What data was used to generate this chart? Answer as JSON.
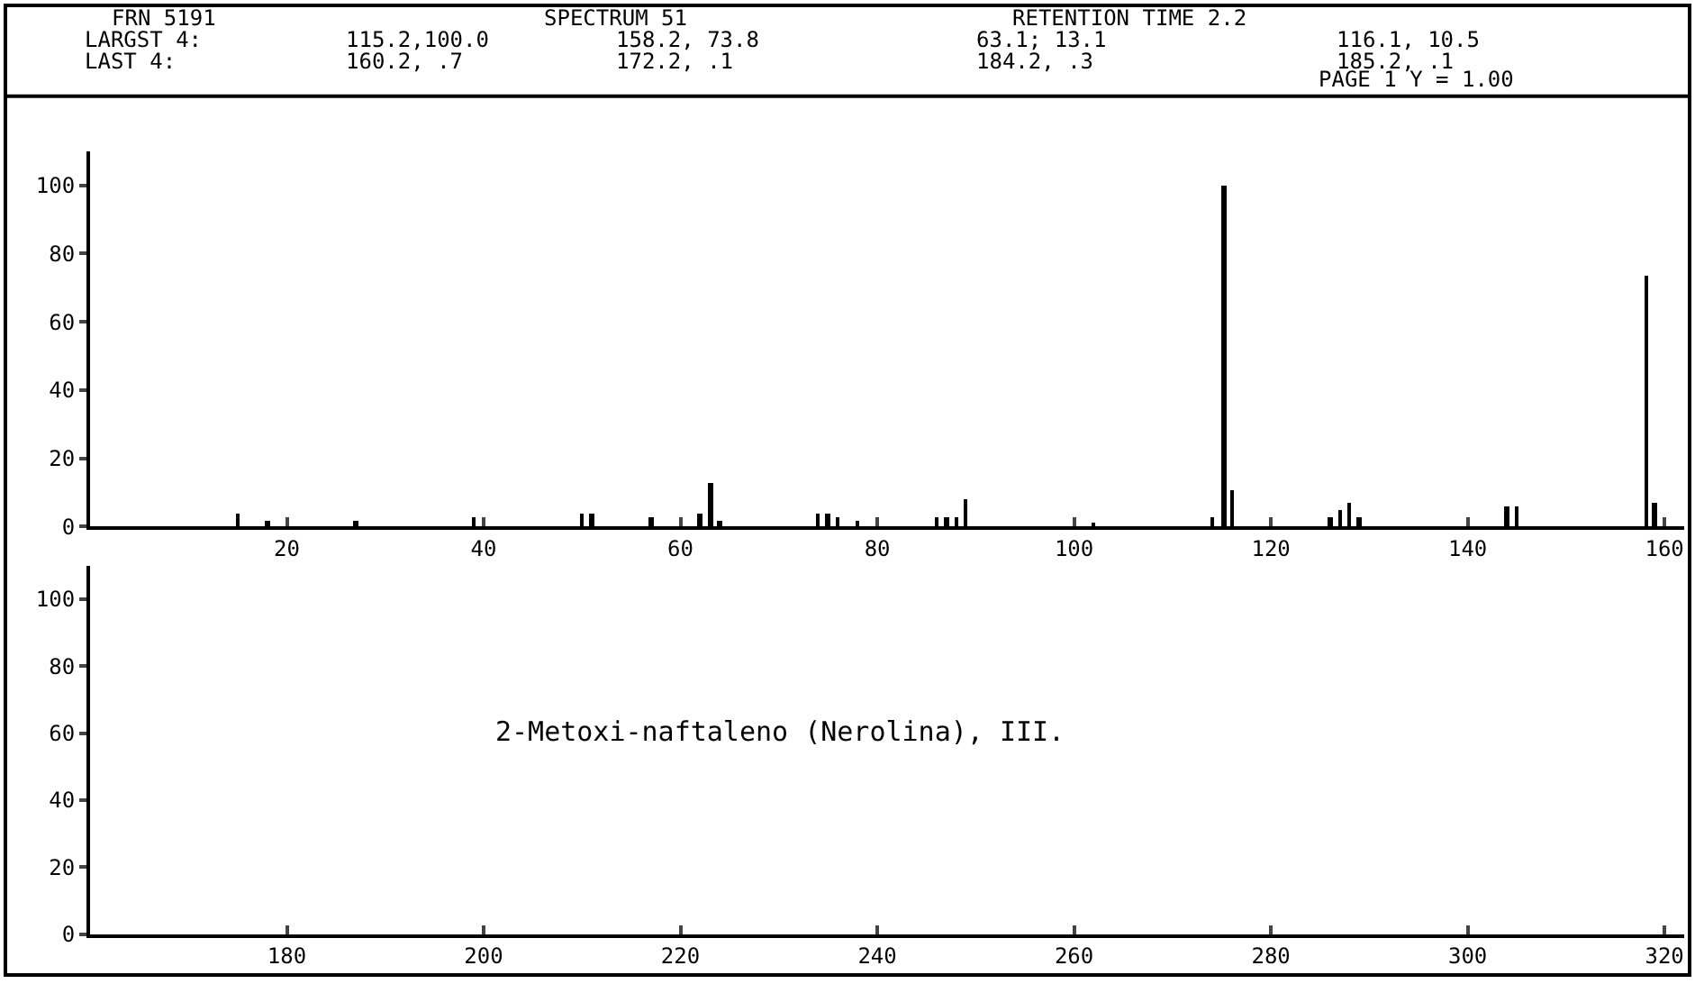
{
  "chart_data": [
    {
      "type": "bar",
      "annotations": [
        "FRN 5191",
        "SPECTRUM 51",
        "RETENTION TIME 2.2",
        "LARGST 4:",
        "115.2,100.0",
        "158.2, 73.8",
        "63.1; 13.1",
        "116.1, 10.5",
        "LAST 4:",
        "160.2, .7",
        "172.2, .1",
        "184.2, .3",
        "185.2, .1",
        "PAGE 1 Y = 1.00"
      ],
      "x": [
        15,
        18,
        27,
        39,
        50,
        51,
        57,
        62,
        63.1,
        64,
        74,
        75,
        76,
        78,
        86,
        87,
        88,
        89,
        102,
        114,
        115.2,
        116.1,
        126,
        127,
        128,
        129,
        144,
        145,
        158.2,
        159
      ],
      "values": [
        4,
        2,
        2,
        3,
        4,
        4,
        3,
        4,
        13.1,
        2,
        4,
        4,
        3,
        2,
        3,
        3,
        3,
        8,
        1,
        3,
        100,
        10.5,
        3,
        5,
        7,
        3,
        6,
        6,
        73.8,
        7
      ],
      "color": "#000000",
      "xlim": [
        0,
        162
      ],
      "xticks": [
        20,
        40,
        60,
        80,
        100,
        120,
        140,
        160
      ],
      "ylim": [
        0,
        110
      ],
      "yticks": [
        0,
        20,
        40,
        60,
        80,
        100
      ],
      "legend": false
    },
    {
      "type": "bar",
      "annotations": [
        "2-Metoxi-naftaleno (Nerolina), III."
      ],
      "xlim": [
        160,
        322
      ],
      "xticks": [
        180,
        200,
        220,
        240,
        260,
        280,
        300,
        320
      ],
      "ylim": [
        0,
        110
      ],
      "yticks": [
        0,
        20,
        40,
        60,
        80,
        100
      ]
    }
  ]
}
